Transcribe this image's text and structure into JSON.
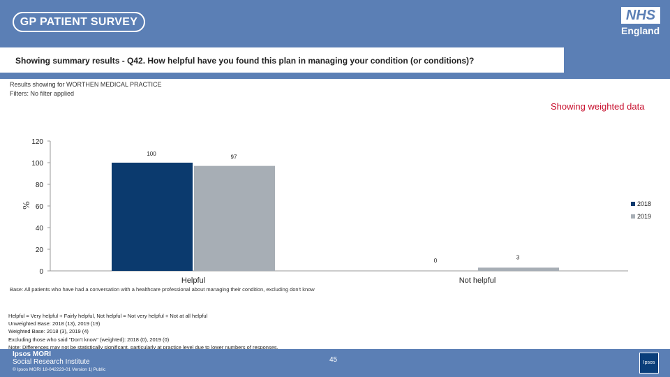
{
  "header": {
    "survey_logo": "GP PATIENT SURVEY",
    "nhs_logo": "NHS",
    "nhs_sub": "England",
    "question": "Showing summary results - Q42.  How helpful have you found this plan in managing your condition (or conditions)?"
  },
  "meta": {
    "results_for": "Results showing for WORTHEN MEDICAL PRACTICE",
    "filters": "Filters: No filter applied",
    "weighted": "Showing weighted data"
  },
  "colors": {
    "series_2018": "#0b3a6e",
    "series_2019": "#a7aeb5",
    "header": "#5b7fb5",
    "weighted": "#c8102e"
  },
  "chart_data": {
    "type": "bar",
    "categories": [
      "Helpful",
      "Not helpful"
    ],
    "series": [
      {
        "name": "2018",
        "values": [
          100,
          0
        ]
      },
      {
        "name": "2019",
        "values": [
          97,
          3
        ]
      }
    ],
    "ylabel": "%",
    "ylim": [
      0,
      120
    ],
    "yticks": [
      "120",
      "100",
      "80",
      "60",
      "40",
      "20",
      "0"
    ],
    "data_labels": [
      [
        "100",
        "0"
      ],
      [
        "97",
        "3"
      ]
    ],
    "legend": "right",
    "grid": false
  },
  "notes": {
    "base": "Base: All patients who have had a conversation with a healthcare professional about managing their condition, excluding don't know",
    "definition": "Helpful = Very helpful + Fairly helpful, Not helpful = Not very helpful + Not at all helpful",
    "unweighted": "Unweighted Base: 2018 (13), 2019 (19)",
    "weighted_base": "Weighted Base: 2018 (3), 2019 (4)",
    "excluding": "Excluding those who said \"Don't know\" (weighted): 2018 (0), 2019 (0)",
    "note": "Note: Differences may not be statistically significant, particularly at practice level due to lower numbers of responses."
  },
  "footer": {
    "ipsos_line1": "Ipsos MORI",
    "ipsos_line2": "Social Research Institute",
    "copyright": "© Ipsos MORI      18-042223-01 Version 1| Public",
    "page": "45",
    "ipsos_logo": "Ipsos"
  }
}
